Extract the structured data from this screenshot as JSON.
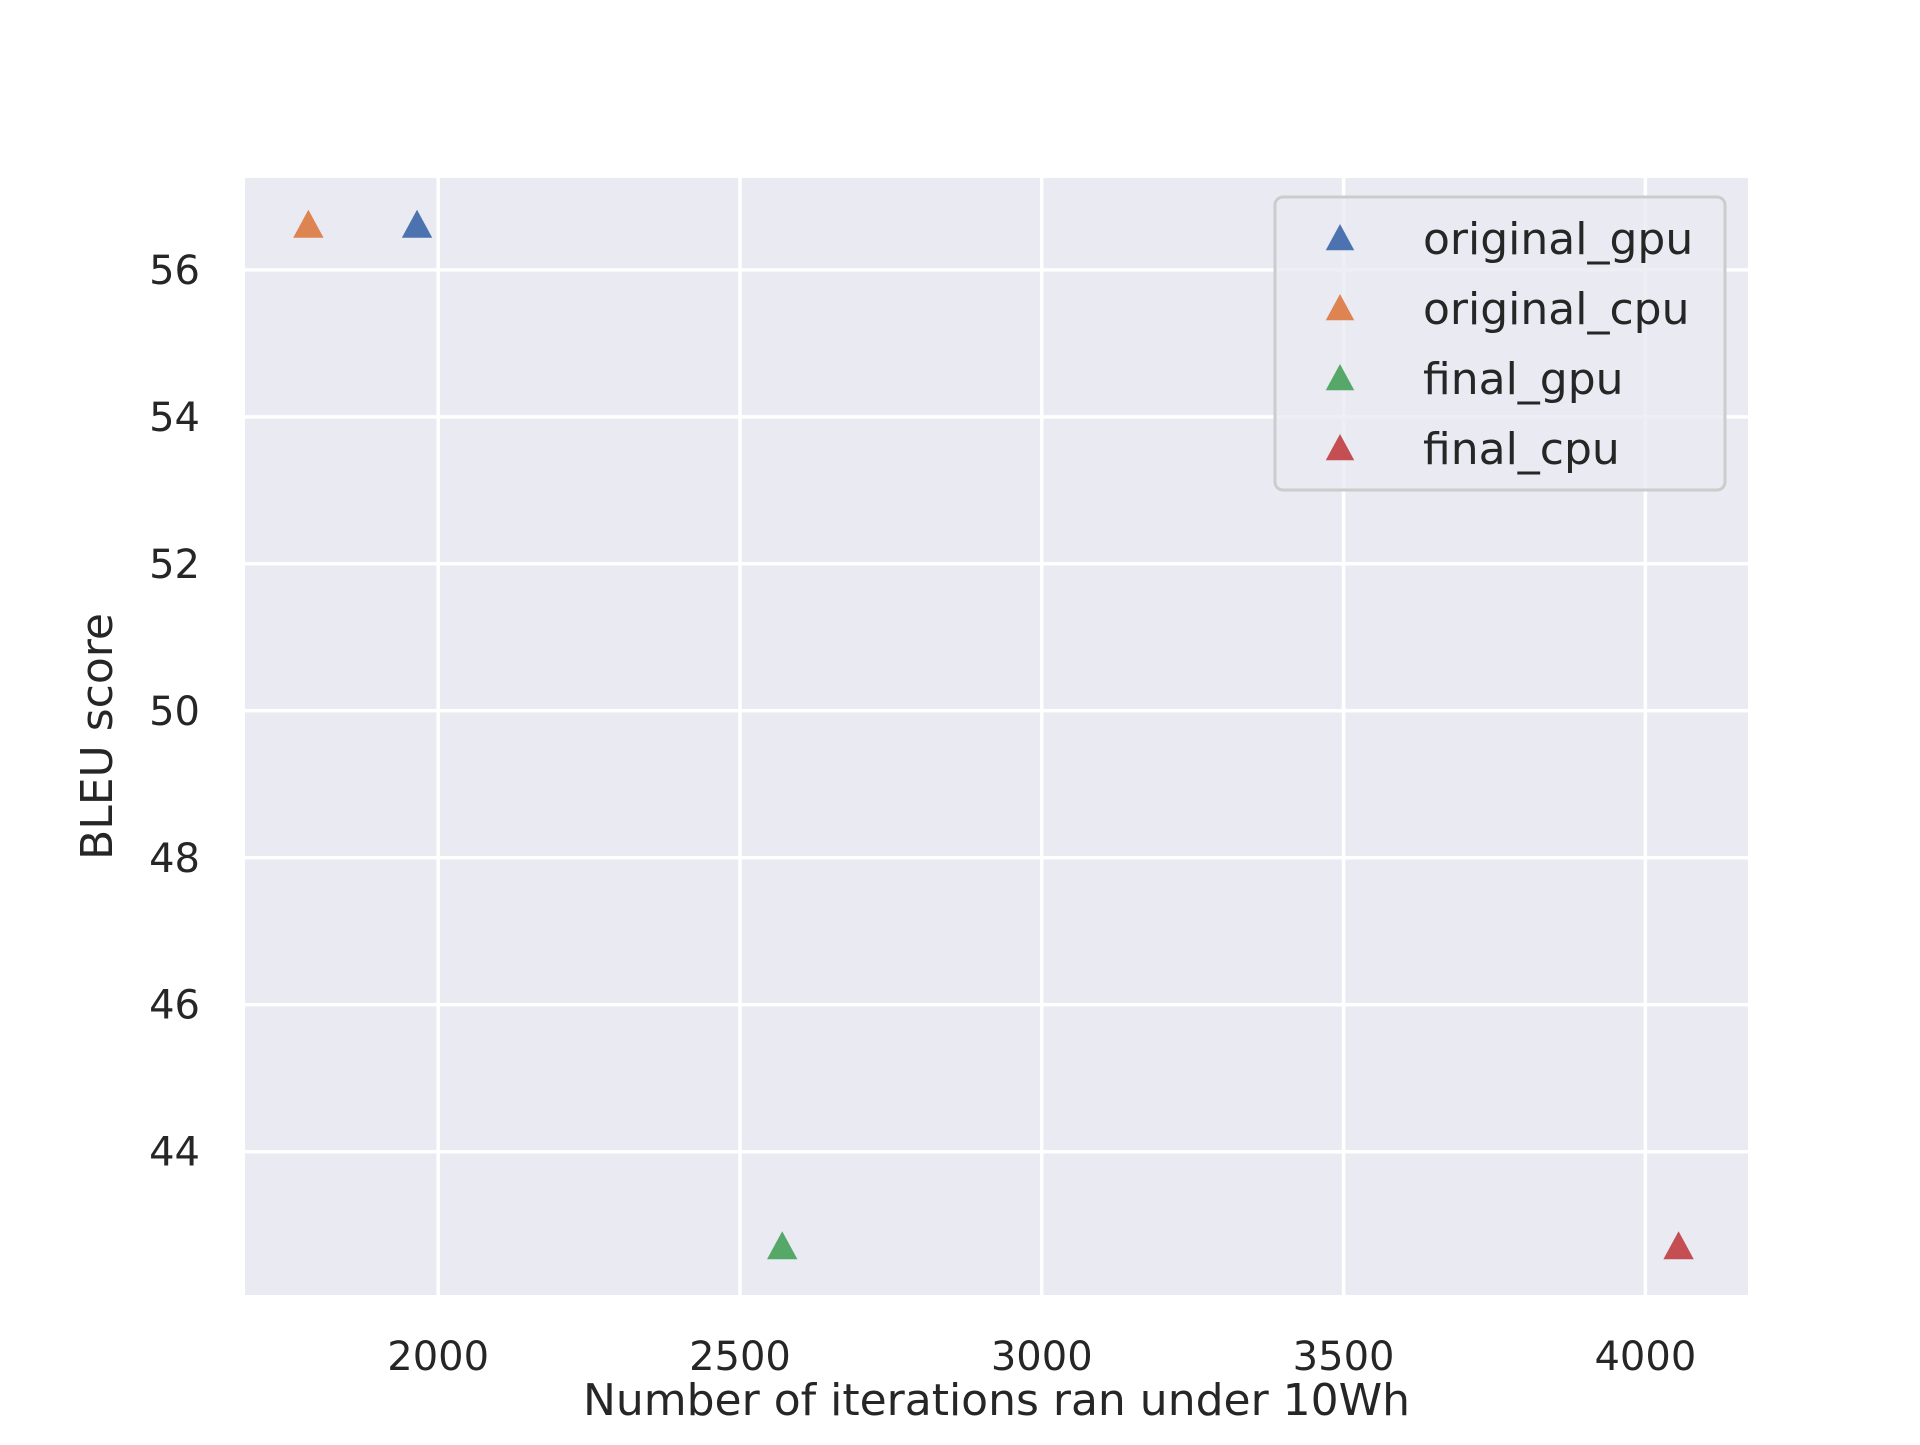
{
  "chart_data": {
    "type": "scatter",
    "title": "",
    "xlabel": "Number of iterations ran under 10Wh",
    "ylabel": "BLEU score",
    "xlim": [
      1680,
      4170
    ],
    "ylim": [
      42.05,
      57.25
    ],
    "xticks": [
      2000,
      2500,
      3000,
      3500,
      4000
    ],
    "yticks": [
      44,
      46,
      48,
      50,
      52,
      54,
      56
    ],
    "grid": true,
    "background": "#eaeaf2",
    "grid_color": "#ffffff",
    "marker": "triangle-up",
    "legend_position": "top-right",
    "series": [
      {
        "name": "original_gpu",
        "color": "#4c72b0",
        "x": [
          1965
        ],
        "y": [
          56.6
        ]
      },
      {
        "name": "original_cpu",
        "color": "#dd8452",
        "x": [
          1785
        ],
        "y": [
          56.6
        ]
      },
      {
        "name": "final_gpu",
        "color": "#55a868",
        "x": [
          2570
        ],
        "y": [
          42.7
        ]
      },
      {
        "name": "final_cpu",
        "color": "#c44e52",
        "x": [
          4055
        ],
        "y": [
          42.7
        ]
      }
    ]
  }
}
